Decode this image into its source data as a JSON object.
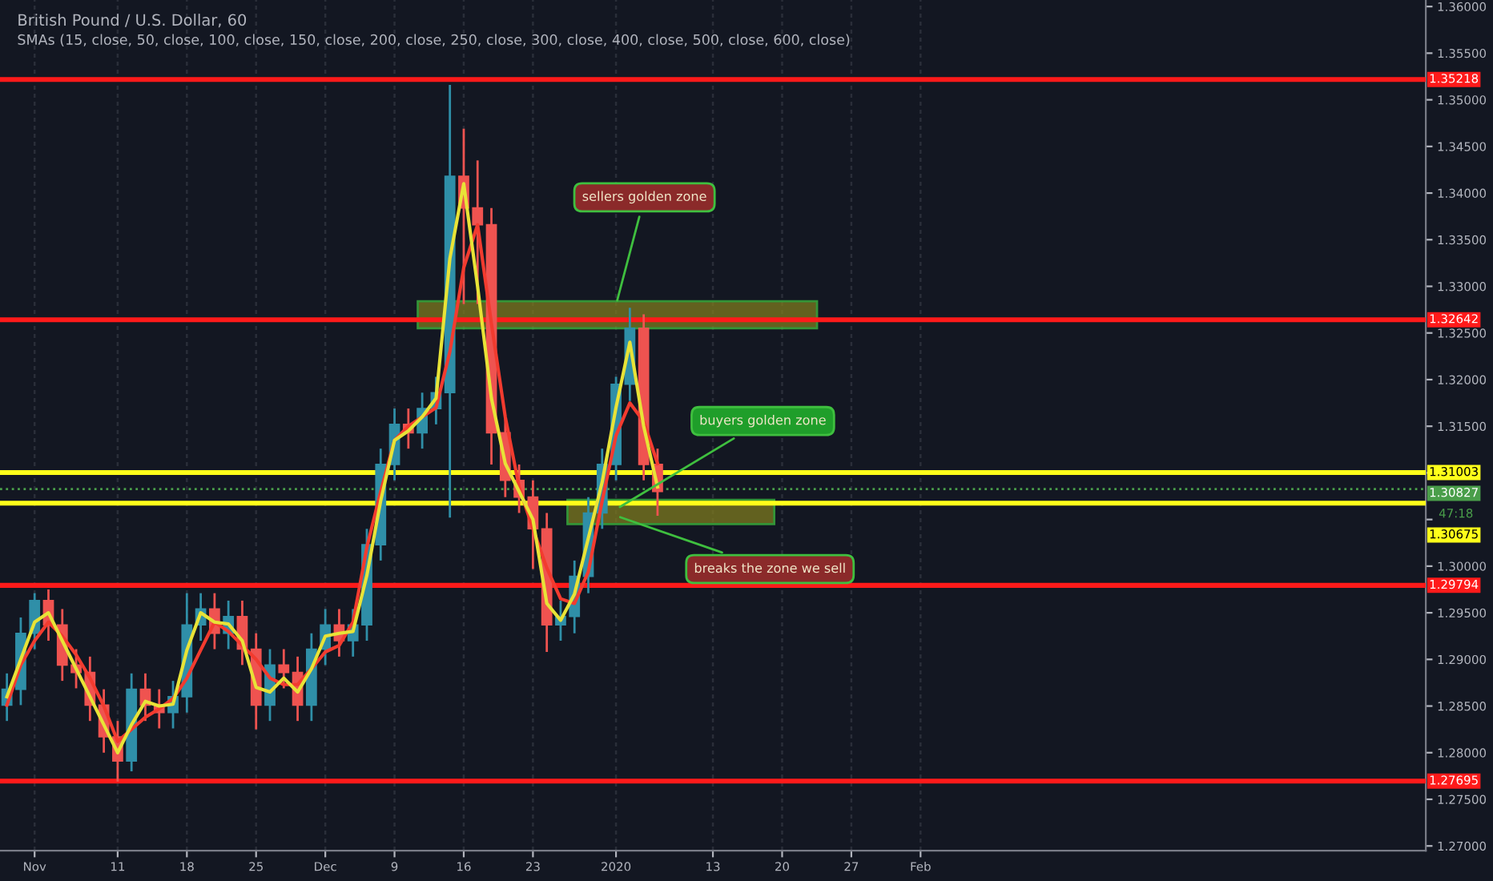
{
  "chart_data": {
    "type": "candlestick",
    "title": "British Pound / U.S. Dollar, 60",
    "subtitle": "SMAs (15, close, 50, close, 100, close, 150, close, 200, close, 250, close, 300, close, 400, close, 500, close, 600, close)",
    "categories": [
      null,
      null,
      "Nov",
      null,
      null,
      null,
      null,
      null,
      "11",
      null,
      null,
      null,
      null,
      "18",
      null,
      null,
      null,
      null,
      "25",
      null,
      null,
      null,
      null,
      "Dec",
      null,
      null,
      null,
      null,
      "9",
      null,
      null,
      null,
      null,
      "16",
      null,
      null,
      null,
      null,
      "23",
      null,
      null,
      null,
      null,
      null,
      "2020",
      null,
      null,
      null,
      null,
      null,
      null,
      "13",
      null,
      null,
      null,
      null,
      "20",
      null,
      null,
      null,
      null,
      "27",
      null,
      null,
      null,
      null,
      "Feb",
      null,
      null,
      null,
      null,
      null,
      null,
      null,
      null,
      null,
      null,
      null,
      null,
      null,
      null,
      null,
      null,
      null,
      null,
      null,
      null,
      null,
      null,
      null,
      null,
      null,
      null,
      null,
      null,
      null,
      null,
      null,
      null,
      null,
      null,
      null,
      null
    ],
    "ohlc": [
      [
        1.2851,
        1.2885,
        1.2834,
        1.2868
      ],
      [
        1.2868,
        1.2945,
        1.2851,
        1.2928
      ],
      [
        1.2928,
        1.2971,
        1.2911,
        1.2963
      ],
      [
        1.2963,
        1.2975,
        1.292,
        1.2937
      ],
      [
        1.2937,
        1.2954,
        1.2877,
        1.2894
      ],
      [
        1.2894,
        1.2911,
        1.2869,
        1.2886
      ],
      [
        1.2886,
        1.2903,
        1.2834,
        1.2851
      ],
      [
        1.2851,
        1.2868,
        1.28,
        1.2817
      ],
      [
        1.2817,
        1.2834,
        1.2769,
        1.2791
      ],
      [
        1.2791,
        1.2885,
        1.278,
        1.2868
      ],
      [
        1.2868,
        1.2885,
        1.2834,
        1.2851
      ],
      [
        1.2851,
        1.2868,
        1.2826,
        1.2843
      ],
      [
        1.2843,
        1.2877,
        1.2826,
        1.286
      ],
      [
        1.286,
        1.2971,
        1.2843,
        1.2937
      ],
      [
        1.2937,
        1.2971,
        1.292,
        1.2954
      ],
      [
        1.2954,
        1.2971,
        1.2911,
        1.2928
      ],
      [
        1.2928,
        1.2963,
        1.2911,
        1.2946
      ],
      [
        1.2946,
        1.2963,
        1.2894,
        1.2911
      ],
      [
        1.2911,
        1.2928,
        1.2825,
        1.2851
      ],
      [
        1.2851,
        1.2911,
        1.2834,
        1.2894
      ],
      [
        1.2894,
        1.2911,
        1.2869,
        1.2886
      ],
      [
        1.2886,
        1.2903,
        1.2834,
        1.2851
      ],
      [
        1.2851,
        1.2928,
        1.2834,
        1.2911
      ],
      [
        1.2911,
        1.2954,
        1.2894,
        1.2937
      ],
      [
        1.2937,
        1.2954,
        1.2903,
        1.292
      ],
      [
        1.292,
        1.2954,
        1.2903,
        1.2937
      ],
      [
        1.2937,
        1.304,
        1.292,
        1.3023
      ],
      [
        1.3023,
        1.3126,
        1.3006,
        1.3109
      ],
      [
        1.3109,
        1.3169,
        1.3092,
        1.3152
      ],
      [
        1.3152,
        1.3169,
        1.3126,
        1.3143
      ],
      [
        1.3143,
        1.3186,
        1.3126,
        1.3169
      ],
      [
        1.3169,
        1.3203,
        1.3152,
        1.3186
      ],
      [
        1.3186,
        1.3516,
        1.3052,
        1.3418
      ],
      [
        1.3418,
        1.3469,
        1.3281,
        1.3384
      ],
      [
        1.3384,
        1.3435,
        1.3281,
        1.3366
      ],
      [
        1.3366,
        1.3384,
        1.3109,
        1.3143
      ],
      [
        1.3143,
        1.316,
        1.3074,
        1.3092
      ],
      [
        1.3092,
        1.3109,
        1.3057,
        1.3074
      ],
      [
        1.3074,
        1.3092,
        1.2997,
        1.304
      ],
      [
        1.304,
        1.3057,
        1.2908,
        1.2937
      ],
      [
        1.2937,
        1.2963,
        1.292,
        1.2946
      ],
      [
        1.2946,
        1.3006,
        1.2928,
        1.2989
      ],
      [
        1.2989,
        1.3074,
        1.2971,
        1.3057
      ],
      [
        1.3057,
        1.3126,
        1.304,
        1.3109
      ],
      [
        1.3109,
        1.3203,
        1.3092,
        1.3195
      ],
      [
        1.3195,
        1.3277,
        1.3177,
        1.3255
      ],
      [
        1.3255,
        1.327,
        1.3092,
        1.3109
      ],
      [
        1.3109,
        1.3126,
        1.3054,
        1.308
      ],
      null,
      null,
      null,
      null,
      null,
      null,
      null,
      null,
      null,
      null,
      null,
      null,
      null,
      null,
      null,
      null,
      null,
      null,
      null,
      null,
      null,
      null,
      null,
      null,
      null,
      null,
      null,
      null,
      null,
      null,
      null,
      null,
      null,
      null,
      null,
      null,
      null,
      null,
      null,
      null,
      null,
      null,
      null,
      null,
      null,
      null,
      null,
      null,
      null,
      null,
      null,
      null,
      null,
      null,
      null
    ],
    "colors": [
      "#2f8fa8",
      "#2f8fa8",
      "#2f8fa8",
      "#ef5350",
      "#ef5350",
      "#ef5350",
      "#ef5350",
      "#ef5350",
      "#ef5350",
      "#2f8fa8",
      "#ef5350",
      "#ef5350",
      "#2f8fa8",
      "#2f8fa8",
      "#2f8fa8",
      "#ef5350",
      "#2f8fa8",
      "#ef5350",
      "#ef5350",
      "#2f8fa8",
      "#ef5350",
      "#ef5350",
      "#2f8fa8",
      "#2f8fa8",
      "#ef5350",
      "#2f8fa8",
      "#2f8fa8",
      "#2f8fa8",
      "#2f8fa8",
      "#ef5350",
      "#2f8fa8",
      "#2f8fa8",
      "#2f8fa8",
      "#ef5350",
      "#ef5350",
      "#ef5350",
      "#ef5350",
      "#ef5350",
      "#ef5350",
      "#ef5350",
      "#2f8fa8",
      "#2f8fa8",
      "#2f8fa8",
      "#2f8fa8",
      "#2f8fa8",
      "#2f8fa8",
      "#ef5350",
      "#ef5350",
      null,
      null,
      null,
      null,
      null,
      null,
      null,
      null,
      null,
      null,
      null,
      null,
      null,
      null,
      null,
      null,
      null,
      null,
      null,
      null,
      null,
      null,
      null,
      null,
      null,
      null,
      null,
      null,
      null,
      null,
      null,
      null,
      null,
      null,
      null,
      null,
      null,
      null,
      null,
      null,
      null,
      null,
      null,
      null,
      null,
      null,
      null,
      null,
      null,
      null,
      null,
      null,
      null,
      null,
      null
    ],
    "series": [
      {
        "type": "line",
        "color": "#f23b2f",
        "values": [
          1.2851,
          1.2894,
          1.292,
          1.294,
          1.2925,
          1.2905,
          1.288,
          1.285,
          1.2812,
          1.2825,
          1.2838,
          1.2847,
          1.2858,
          1.288,
          1.291,
          1.294,
          1.293,
          1.2915,
          1.29,
          1.288,
          1.2873,
          1.2873,
          1.289,
          1.2908,
          1.2915,
          1.294,
          1.302,
          1.308,
          1.3135,
          1.315,
          1.316,
          1.317,
          1.323,
          1.332,
          1.3366,
          1.326,
          1.316,
          1.3085,
          1.304,
          1.2998,
          1.2965,
          1.296,
          1.2994,
          1.307,
          1.314,
          1.3175,
          1.3155,
          1.311,
          null,
          null,
          null,
          null,
          null,
          null,
          null,
          null,
          null,
          null,
          null,
          null,
          null,
          null,
          null,
          null,
          null,
          null,
          null,
          null,
          null,
          null,
          null,
          null,
          null,
          null,
          null,
          null,
          null,
          null,
          null,
          null,
          null,
          null,
          null,
          null,
          null,
          null,
          null,
          null,
          null,
          null,
          null,
          null,
          null,
          null,
          null,
          null,
          null,
          null,
          null,
          null,
          null,
          null,
          null
        ]
      },
      {
        "type": "line",
        "color": "#e8e337",
        "values": [
          1.286,
          1.29,
          1.294,
          1.295,
          1.292,
          1.289,
          1.286,
          1.283,
          1.28,
          1.283,
          1.2855,
          1.285,
          1.2852,
          1.291,
          1.295,
          1.294,
          1.2938,
          1.292,
          1.287,
          1.2865,
          1.288,
          1.2865,
          1.289,
          1.2925,
          1.2928,
          1.293,
          1.299,
          1.307,
          1.3135,
          1.3145,
          1.316,
          1.318,
          1.333,
          1.341,
          1.33,
          1.318,
          1.311,
          1.308,
          1.305,
          1.296,
          1.2942,
          1.297,
          1.303,
          1.309,
          1.317,
          1.324,
          1.315,
          1.3085,
          null,
          null,
          null,
          null,
          null,
          null,
          null,
          null,
          null,
          null,
          null,
          null,
          null,
          null,
          null,
          null,
          null,
          null,
          null,
          null,
          null,
          null,
          null,
          null,
          null,
          null,
          null,
          null,
          null,
          null,
          null,
          null,
          null,
          null,
          null,
          null,
          null,
          null,
          null,
          null,
          null,
          null,
          null,
          null,
          null,
          null,
          null,
          null,
          null,
          null,
          null,
          null,
          null,
          null,
          null
        ]
      }
    ],
    "bands": [
      {
        "axis": "y",
        "from": 1.3255,
        "to": 1.3284,
        "color": "#7d7a1e"
      },
      {
        "axis": "y",
        "from": 1.3045,
        "to": 1.3071,
        "color": "#7d7a1e"
      }
    ],
    "ref_lines": [
      {
        "axis": "y",
        "value": 1.35218,
        "label": "1.35218",
        "color": "#ff1a1a"
      },
      {
        "axis": "y",
        "value": 1.32642,
        "label": "1.32642",
        "color": "#ff1a1a"
      },
      {
        "axis": "y",
        "value": 1.31003,
        "label": "1.31003",
        "color": "#ffff1a"
      },
      {
        "axis": "y",
        "value": 1.30827,
        "label": "1.30827",
        "color": "#4a9e4a",
        "line_style": "dotted"
      },
      {
        "axis": "y",
        "value": 1.30675,
        "label": "1.30675",
        "color": "#ffff1a"
      },
      {
        "axis": "y",
        "value": 1.29794,
        "label": "1.29794",
        "color": "#ff1a1a"
      },
      {
        "axis": "y",
        "value": 1.27695,
        "label": "1.27695",
        "color": "#ff1a1a"
      }
    ],
    "annotations": [
      {
        "text": "sellers golden zone",
        "x": "2020",
        "y": 1.328
      },
      {
        "text": "buyers golden zone",
        "x": "2020",
        "y": 1.3061
      },
      {
        "text": "breaks the zone we sell",
        "x": "2020",
        "y": 1.3054
      },
      "47:18"
    ],
    "ylim": [
      1.2695,
      1.3607
    ],
    "yticks": [
      {
        "value": 1.27,
        "label": "1.27000"
      },
      {
        "value": 1.275,
        "label": "1.27500"
      },
      {
        "value": 1.28,
        "label": "1.28000"
      },
      {
        "value": 1.285,
        "label": "1.28500"
      },
      {
        "value": 1.29,
        "label": "1.29000"
      },
      {
        "value": 1.295,
        "label": "1.29500"
      },
      {
        "value": 1.3,
        "label": "1.30000"
      },
      {
        "value": 1.305,
        "label": null
      },
      {
        "value": 1.31,
        "label": null
      },
      {
        "value": 1.315,
        "label": "1.31500"
      },
      {
        "value": 1.32,
        "label": "1.32000"
      },
      {
        "value": 1.325,
        "label": "1.32500"
      },
      {
        "value": 1.33,
        "label": "1.33000"
      },
      {
        "value": 1.335,
        "label": "1.33500"
      },
      {
        "value": 1.34,
        "label": "1.34000"
      },
      {
        "value": 1.345,
        "label": "1.34500"
      },
      {
        "value": 1.35,
        "label": "1.35000"
      },
      {
        "value": 1.355,
        "label": "1.35500"
      },
      {
        "value": 1.36,
        "label": "1.36000"
      }
    ],
    "grid": "x",
    "legend": false
  }
}
